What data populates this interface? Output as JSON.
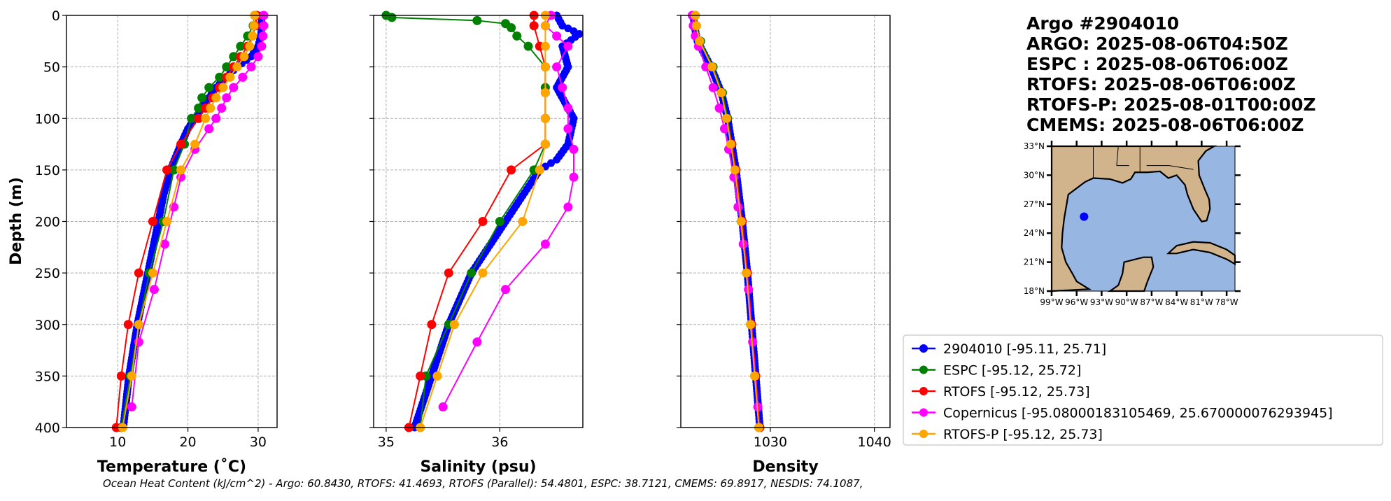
{
  "title_lines": [
    "Argo #2904010",
    "ARGO: 2025-08-06T04:50Z",
    "ESPC : 2025-08-06T06:00Z",
    "RTOFS: 2025-08-06T06:00Z",
    "RTOFS-P: 2025-08-01T00:00Z",
    "CMEMS: 2025-08-06T06:00Z"
  ],
  "footer": "Ocean Heat Content (kJ/cm^2) - Argo: 60.8430,  RTOFS: 41.4693,  RTOFS (Parallel): 54.4801,  ESPC: 38.7121,  CMEMS: 69.8917,  NESDIS: 74.1087,",
  "legend": [
    {
      "label": "2904010 [-95.11, 25.71]",
      "color": "#0000ff"
    },
    {
      "label": "ESPC [-95.12, 25.72]",
      "color": "#008000"
    },
    {
      "label": "RTOFS [-95.12, 25.73]",
      "color": "#ff0000"
    },
    {
      "label": "Copernicus [-95.08000183105469, 25.670000076293945]",
      "color": "#ff00ff"
    },
    {
      "label": "RTOFS-P [-95.12, 25.73]",
      "color": "#ffa500"
    }
  ],
  "map": {
    "lat_ticks": [
      "33°N",
      "30°N",
      "27°N",
      "24°N",
      "21°N",
      "18°N"
    ],
    "lon_ticks": [
      "99°W",
      "96°W",
      "93°W",
      "90°W",
      "87°W",
      "84°W",
      "81°W",
      "78°W"
    ],
    "lon_range": [
      -99,
      -77
    ],
    "lat_range": [
      18,
      33
    ],
    "marker": {
      "lon": -95.11,
      "lat": 25.71,
      "color": "#0000ff"
    },
    "land_color": "#d2b48c",
    "ocean_color": "#97b6e1"
  },
  "chart_data": [
    {
      "type": "line",
      "xlabel": "Temperature (˚C)",
      "ylabel": "Depth (m)",
      "xlim": [
        2.7,
        32.7
      ],
      "ylim": [
        400,
        0
      ],
      "xticks": [
        10,
        20,
        30
      ],
      "xtick_labels": [
        "10",
        "20",
        "30"
      ],
      "yticks": [
        0,
        50,
        100,
        150,
        200,
        250,
        300,
        350,
        400
      ],
      "ytick_labels": [
        "0",
        "50",
        "100",
        "150",
        "200",
        "250",
        "300",
        "350",
        "400"
      ],
      "grid": true,
      "series": [
        {
          "name": "2904010",
          "depth": [
            0,
            10,
            20,
            30,
            40,
            50,
            60,
            70,
            80,
            90,
            100,
            110,
            125,
            150,
            175,
            200,
            250,
            300,
            350,
            400
          ],
          "values": [
            30.5,
            30.5,
            30.4,
            30.0,
            29.0,
            27.0,
            25.5,
            24.0,
            23.0,
            22.0,
            21.0,
            20.0,
            19.0,
            17.5,
            16.5,
            15.8,
            14.3,
            12.8,
            11.6,
            10.8
          ]
        },
        {
          "name": "ESPC",
          "depth": [
            0,
            10,
            20,
            30,
            40,
            50,
            60,
            70,
            80,
            90,
            100,
            125,
            150,
            200,
            250,
            300,
            350,
            400
          ],
          "values": [
            29.5,
            29.3,
            28.5,
            27.5,
            26.5,
            25.5,
            24.5,
            23.0,
            22.0,
            21.5,
            20.5,
            19.5,
            18.0,
            16.5,
            14.5,
            13.0,
            11.8,
            10.5
          ]
        },
        {
          "name": "RTOFS",
          "depth": [
            0,
            10,
            20,
            30,
            40,
            50,
            60,
            70,
            80,
            90,
            100,
            125,
            150,
            200,
            250,
            300,
            350,
            400
          ],
          "values": [
            29.8,
            29.6,
            29.2,
            28.5,
            27.5,
            26.5,
            25.5,
            24.5,
            23.5,
            22.5,
            21.5,
            19.0,
            17.0,
            15.0,
            13.0,
            11.5,
            10.5,
            9.8
          ]
        },
        {
          "name": "Copernicus",
          "depth": [
            0,
            10,
            20,
            30,
            40,
            50,
            60,
            70,
            80,
            90,
            100,
            110,
            130,
            157,
            186,
            222,
            266,
            317,
            380
          ],
          "values": [
            30.8,
            30.8,
            30.7,
            30.5,
            30.0,
            29.0,
            27.8,
            26.5,
            25.5,
            24.8,
            24.0,
            23.0,
            21.0,
            19.0,
            18.0,
            16.7,
            15.2,
            13.0,
            12.0
          ]
        },
        {
          "name": "RTOFS-P",
          "depth": [
            0,
            10,
            20,
            30,
            40,
            50,
            60,
            70,
            80,
            90,
            100,
            125,
            150,
            200,
            250,
            300,
            350,
            400
          ],
          "values": [
            29.5,
            29.4,
            29.2,
            28.8,
            28.0,
            27.0,
            26.0,
            25.0,
            24.0,
            23.2,
            22.5,
            21.0,
            19.0,
            17.0,
            15.0,
            13.0,
            12.0,
            10.7
          ]
        }
      ]
    },
    {
      "type": "line",
      "xlabel": "Salinity (psu)",
      "xlim": [
        34.89,
        36.73
      ],
      "ylim": [
        400,
        0
      ],
      "xticks": [
        35,
        36
      ],
      "xtick_labels": [
        "35",
        "36"
      ],
      "grid": true,
      "series": [
        {
          "name": "2904010",
          "depth": [
            0,
            10,
            18,
            30,
            50,
            70,
            90,
            100,
            125,
            140,
            150,
            175,
            200,
            250,
            300,
            350,
            400
          ],
          "values": [
            36.5,
            36.55,
            36.7,
            36.55,
            36.6,
            36.5,
            36.6,
            36.65,
            36.6,
            36.5,
            36.35,
            36.2,
            36.05,
            35.75,
            35.55,
            35.4,
            35.25
          ]
        },
        {
          "name": "ESPC",
          "depth": [
            0,
            2,
            5,
            8,
            12,
            20,
            30,
            50,
            70,
            100,
            125,
            150,
            200,
            250,
            300,
            350,
            400
          ],
          "values": [
            35.0,
            35.05,
            35.8,
            36.05,
            36.1,
            36.15,
            36.25,
            36.4,
            36.4,
            36.4,
            36.4,
            36.3,
            36.0,
            35.75,
            35.55,
            35.35,
            35.3
          ]
        },
        {
          "name": "RTOFS",
          "depth": [
            0,
            10,
            30,
            50,
            75,
            100,
            125,
            150,
            200,
            250,
            300,
            350,
            400
          ],
          "values": [
            36.3,
            36.3,
            36.35,
            36.4,
            36.4,
            36.4,
            36.4,
            36.1,
            35.85,
            35.55,
            35.4,
            35.3,
            35.2
          ]
        },
        {
          "name": "Copernicus",
          "depth": [
            0,
            10,
            20,
            30,
            50,
            70,
            90,
            110,
            130,
            157,
            186,
            222,
            266,
            317,
            380
          ],
          "values": [
            36.45,
            36.4,
            36.5,
            36.6,
            36.5,
            36.55,
            36.6,
            36.6,
            36.65,
            36.65,
            36.6,
            36.4,
            36.05,
            35.8,
            35.5
          ]
        },
        {
          "name": "RTOFS-P",
          "depth": [
            0,
            10,
            30,
            50,
            75,
            100,
            125,
            150,
            200,
            250,
            300,
            350,
            400
          ],
          "values": [
            36.4,
            36.4,
            36.4,
            36.4,
            36.4,
            36.4,
            36.4,
            36.35,
            36.2,
            35.85,
            35.6,
            35.45,
            35.3
          ]
        }
      ]
    },
    {
      "type": "line",
      "xlabel": "Density",
      "xlim": [
        1021.4,
        1041.5
      ],
      "ylim": [
        400,
        0
      ],
      "xticks": [
        1030,
        1040
      ],
      "xtick_labels": [
        "1030",
        "1040"
      ],
      "grid": true,
      "series": [
        {
          "name": "2904010",
          "depth": [
            0,
            10,
            25,
            50,
            75,
            100,
            125,
            150,
            200,
            250,
            300,
            350,
            400
          ],
          "values": [
            1022.6,
            1022.7,
            1023.0,
            1024.3,
            1025.3,
            1025.9,
            1026.3,
            1026.7,
            1027.3,
            1027.8,
            1028.2,
            1028.6,
            1029.0
          ]
        },
        {
          "name": "ESPC",
          "depth": [
            0,
            10,
            25,
            50,
            75,
            100,
            125,
            150,
            200,
            250,
            300,
            350,
            400
          ],
          "values": [
            1022.8,
            1022.9,
            1023.3,
            1024.5,
            1025.4,
            1025.9,
            1026.3,
            1026.7,
            1027.2,
            1027.7,
            1028.1,
            1028.5,
            1028.9
          ]
        },
        {
          "name": "RTOFS",
          "depth": [
            0,
            10,
            25,
            50,
            75,
            100,
            125,
            150,
            200,
            250,
            300,
            350,
            400
          ],
          "values": [
            1022.7,
            1022.8,
            1023.2,
            1024.4,
            1025.3,
            1025.8,
            1026.3,
            1026.7,
            1027.3,
            1027.8,
            1028.2,
            1028.6,
            1029.0
          ]
        },
        {
          "name": "Copernicus",
          "depth": [
            0,
            10,
            20,
            30,
            50,
            70,
            90,
            110,
            130,
            157,
            186,
            222,
            266,
            317,
            380
          ],
          "values": [
            1022.5,
            1022.6,
            1022.8,
            1023.1,
            1023.8,
            1024.5,
            1025.1,
            1025.6,
            1026.0,
            1026.5,
            1026.9,
            1027.4,
            1027.9,
            1028.3,
            1028.8
          ]
        },
        {
          "name": "RTOFS-P",
          "depth": [
            0,
            10,
            25,
            50,
            75,
            100,
            125,
            150,
            200,
            250,
            300,
            350,
            400
          ],
          "values": [
            1022.8,
            1022.9,
            1023.2,
            1024.4,
            1025.3,
            1025.8,
            1026.2,
            1026.6,
            1027.2,
            1027.7,
            1028.1,
            1028.5,
            1028.9
          ]
        }
      ]
    }
  ]
}
